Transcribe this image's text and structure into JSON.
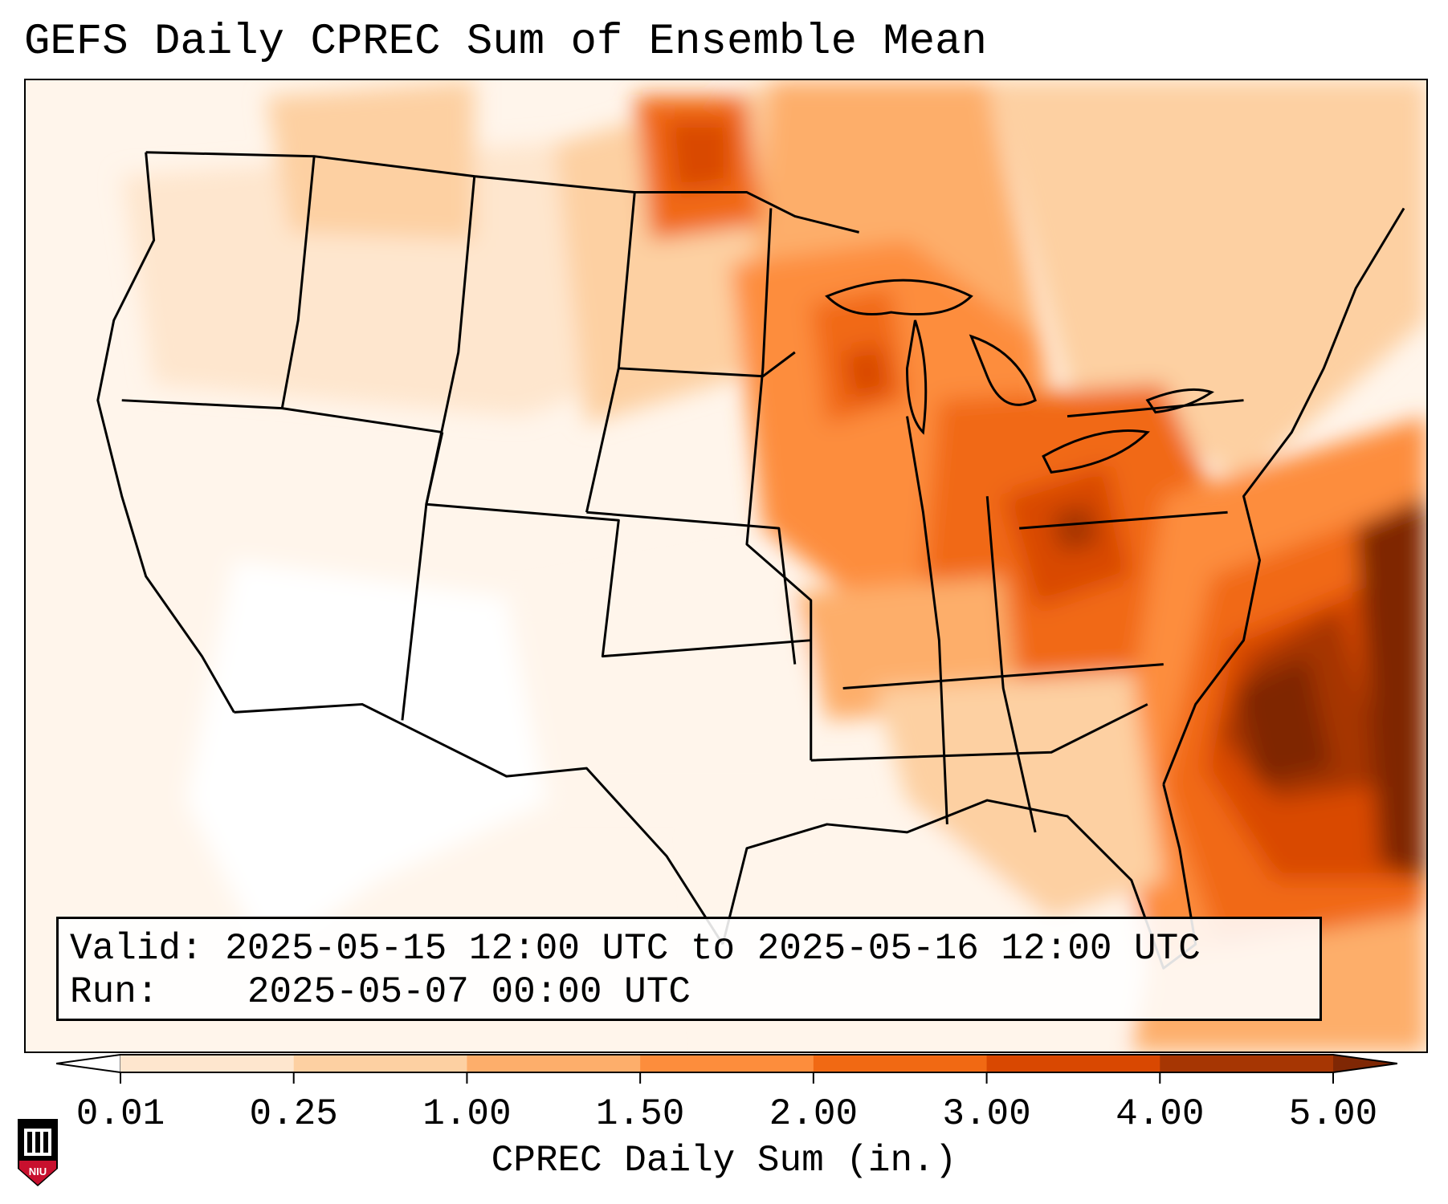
{
  "title": "GEFS Daily CPREC Sum of Ensemble Mean",
  "info_box": {
    "valid_label": "Valid:",
    "valid_value": "2025-05-15 12:00 UTC to 2025-05-16 12:00 UTC",
    "run_label": "Run:",
    "run_value": "2025-05-07 00:00 UTC"
  },
  "colorbar": {
    "label": "CPREC Daily Sum (in.)",
    "ticks": [
      "0.01",
      "0.25",
      "1.00",
      "1.50",
      "2.00",
      "3.00",
      "4.00",
      "5.00"
    ],
    "colors": [
      "#fff5eb",
      "#fee6ce",
      "#fdd0a2",
      "#fdae6b",
      "#fd8d3c",
      "#f16913",
      "#d94801",
      "#a63603"
    ],
    "extend_colors": {
      "under": "#ffffff",
      "over": "#7f2704"
    }
  },
  "map": {
    "projection": "Lambert Conformal (CONUS)",
    "boundaries": "US states, Canada, Mexico, Caribbean coastlines",
    "maxima_regions": [
      "Western Atlantic off Carolinas",
      "Wisconsin / Upper Midwest",
      "Ohio Valley / Kentucky",
      "North Dakota / Saskatchewan border"
    ]
  },
  "logo": {
    "text": "NIU"
  }
}
